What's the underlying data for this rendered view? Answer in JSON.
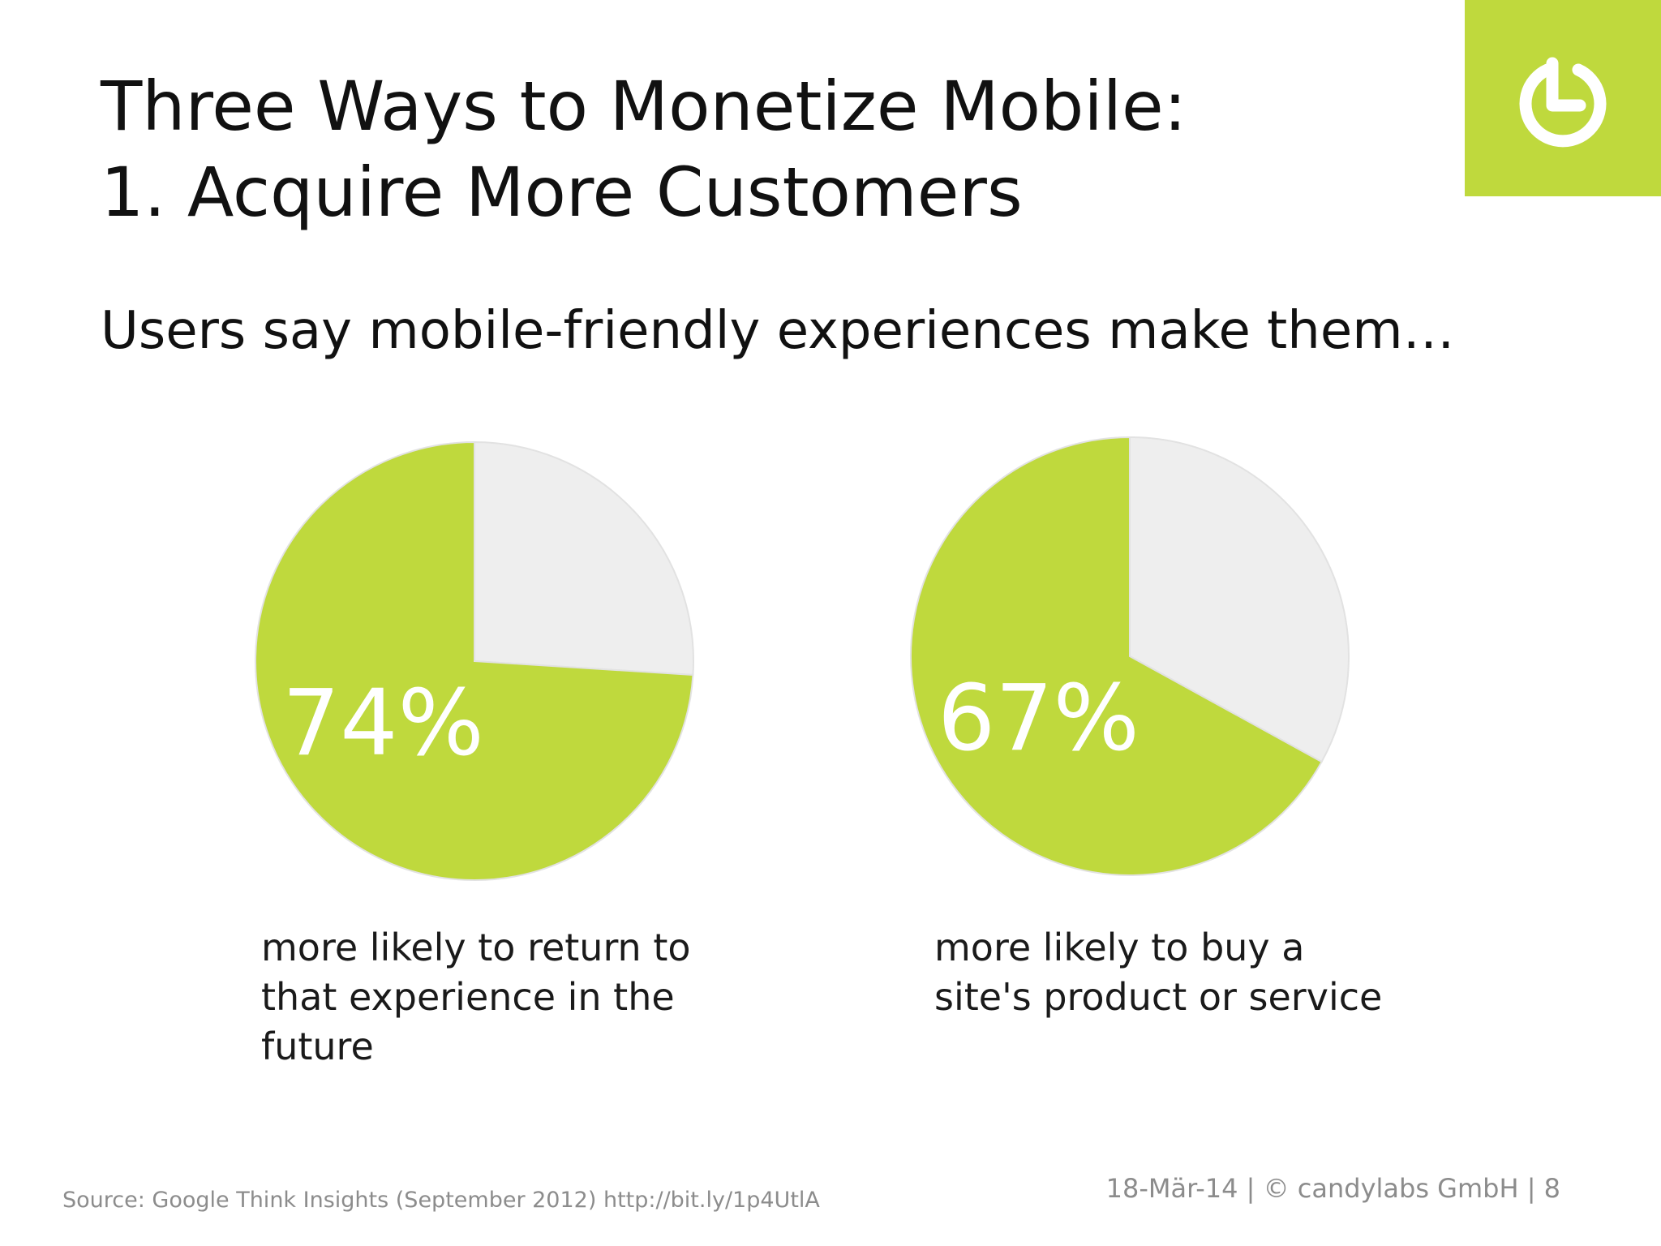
{
  "slide": {
    "title_line1": "Three Ways to Monetize Mobile:",
    "title_line2": "1. Acquire More Customers",
    "subtitle": "Users say mobile-friendly experiences make them…",
    "source": "Source: Google Think Insights (September 2012) http://bit.ly/1p4UtlA",
    "footer": "18-Mär-14 | © candylabs GmbH | 8",
    "logo_icon": "power-icon",
    "colors": {
      "accent": "#bfd93d",
      "remainder": "#eeeeee",
      "text": "#111111",
      "muted": "#8c8c8c"
    }
  },
  "chart_data": [
    {
      "type": "pie",
      "slices": [
        {
          "value": 74,
          "color": "#bfd93d"
        },
        {
          "value": 26,
          "color": "#eeeeee"
        }
      ],
      "value_label": "74%",
      "caption": "more likely to return to\nthat experience in the\nfuture"
    },
    {
      "type": "pie",
      "slices": [
        {
          "value": 67,
          "color": "#bfd93d"
        },
        {
          "value": 33,
          "color": "#eeeeee"
        }
      ],
      "value_label": "67%",
      "caption": "more likely to buy a\nsite's product or service"
    }
  ]
}
